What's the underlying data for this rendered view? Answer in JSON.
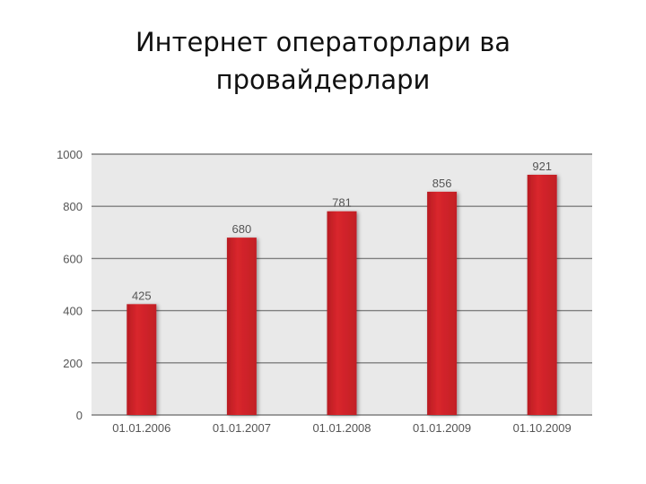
{
  "slide": {
    "title_line1": "Интернет операторлари ва",
    "title_line2": "провайдерлари"
  },
  "chart_data": {
    "type": "bar",
    "title": "",
    "xlabel": "",
    "ylabel": "",
    "categories": [
      "01.01.2006",
      "01.01.2007",
      "01.01.2008",
      "01.01.2009",
      "01.10.2009"
    ],
    "values": [
      425,
      680,
      781,
      856,
      921
    ],
    "ylim": [
      0,
      1000
    ],
    "yticks": [
      0,
      200,
      400,
      600,
      800,
      1000
    ],
    "grid": true,
    "legend": "none",
    "colors": {
      "bar": "#cf2228",
      "plot_background": "#e9e9e9",
      "gridline": "#7f7f7f",
      "text": "#555555"
    }
  }
}
